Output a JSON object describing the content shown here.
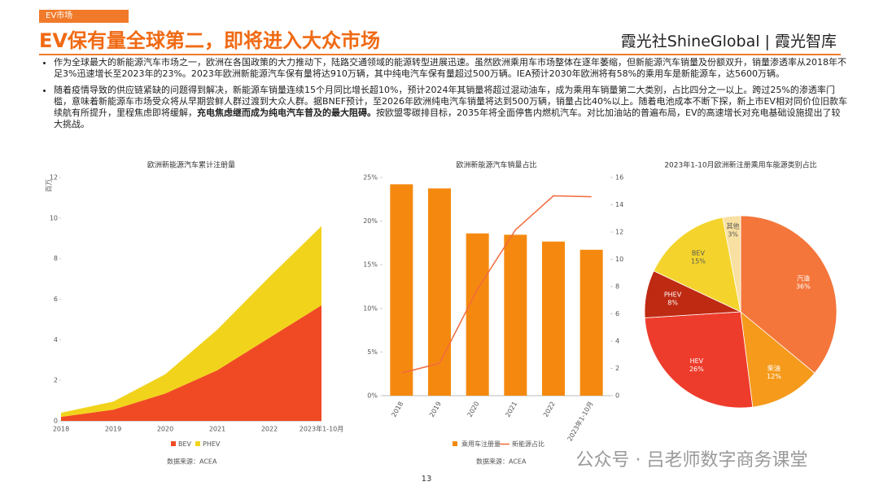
{
  "header": {
    "tag": "EV市场",
    "title": "EV保有量全球第二，即将进入大众市场",
    "brand": "霞光社ShineGlobal",
    "brand2": "霞光智库"
  },
  "bullets": [
    "作为全球最大的新能源汽车市场之一，欧洲在各国政策的大力推动下，陆路交通领域的能源转型进展迅速。虽然欧洲乘用车市场整体在逐年萎缩，但新能源汽车销量及份额双升，销量渗透率从2018年不足3%迅速增长至2023年的23%。2023年欧洲新能源汽车保有量将达910万辆，其中纯电汽车保有量超过500万辆。IEA预计2030年欧洲将有58%的乘用车是新能源车，达5600万辆。",
    {
      "text": "随着疫情导致的供应链紧缺的问题得到解决，新能源车销量连续15个月同比增长超10%，预计2024年其销量将超过混动油车，成为乘用车销量第二大类别，占比四分之一以上。跨过25%的渗透率门槛，意味着新能源车市场受众将从早期尝鲜人群过渡到大众人群。据BNEF预计，至2026年欧洲纯电汽车销量将达到500万辆，销量占比40%以上。随着电池成本不断下探，新上市EV相对同价位旧款车续航有所提升，里程焦虑即将缓解，",
      "bold": "充电焦虑继而成为纯电汽车普及的最大阻碍。",
      "after": "按欧盟零碳排目标，2035年将全面停售内燃机汽车。对比加油站的普遍布局，EV的高速增长对充电基础设施提出了较大挑战。"
    }
  ],
  "page_number": "13",
  "watermark": "公众号 · 吕老师数字商务课堂",
  "chart_data": [
    {
      "type": "area",
      "title": "欧洲新能源汽车累计注册量",
      "y_label": "百万",
      "source": "数据来源：ACEA",
      "categories": [
        "2018",
        "2019",
        "2020",
        "2021",
        "2022",
        "2023年1-10月"
      ],
      "series": [
        {
          "name": "BEV",
          "color": "#f04a24",
          "values": [
            0.2,
            0.55,
            1.35,
            2.5,
            4.1,
            5.7
          ]
        },
        {
          "name": "PHEV",
          "color": "#f2d31c",
          "values": [
            0.2,
            0.4,
            0.95,
            2.0,
            3.0,
            3.9
          ]
        }
      ],
      "ylim": [
        0,
        12
      ],
      "yticks": [
        0,
        2,
        4,
        6,
        8,
        10,
        12
      ]
    },
    {
      "type": "bar",
      "title": "欧洲新能源汽车销量占比",
      "source": "数据来源：ACEA",
      "categories": [
        "2018",
        "2019",
        "2020",
        "2021",
        "2022",
        "2023年1-10月"
      ],
      "series": [
        {
          "name": "乘用车注册量",
          "color": "#f5890f",
          "axis": "y2",
          "values": [
            15.5,
            15.2,
            11.9,
            11.8,
            11.3,
            10.7
          ]
        },
        {
          "name": "新能源占比",
          "color": "#f26a3d",
          "kind": "line",
          "values": [
            2.6,
            3.7,
            12.2,
            19.0,
            22.9,
            22.8
          ]
        }
      ],
      "ylim": [
        0,
        25
      ],
      "yticks": [
        {
          "value": 0,
          "label": "0%"
        },
        {
          "value": 5,
          "label": "5%"
        },
        {
          "value": 10,
          "label": "10%"
        },
        {
          "value": 15,
          "label": "15%"
        },
        {
          "value": 20,
          "label": "20%"
        },
        {
          "value": 25,
          "label": "25%"
        }
      ],
      "y2lim": [
        0,
        16
      ],
      "y2ticks": [
        0,
        2,
        4,
        6,
        8,
        10,
        12,
        14,
        16
      ]
    },
    {
      "type": "pie",
      "title": "2023年1-10月欧洲新注册乘用车能源类别占比",
      "categories": [
        "汽油",
        "柴油",
        "HEV",
        "PHEV",
        "BEV",
        "其他"
      ],
      "values": [
        36,
        12,
        26,
        8,
        15,
        3
      ],
      "value_labels": [
        "36%",
        "12%",
        "26%",
        "8%",
        "15%",
        "3%"
      ],
      "colors": [
        "#f4763b",
        "#f59a1b",
        "#ee3c2c",
        "#bf2a12",
        "#f4d42c",
        "#f8e0a2"
      ]
    }
  ]
}
